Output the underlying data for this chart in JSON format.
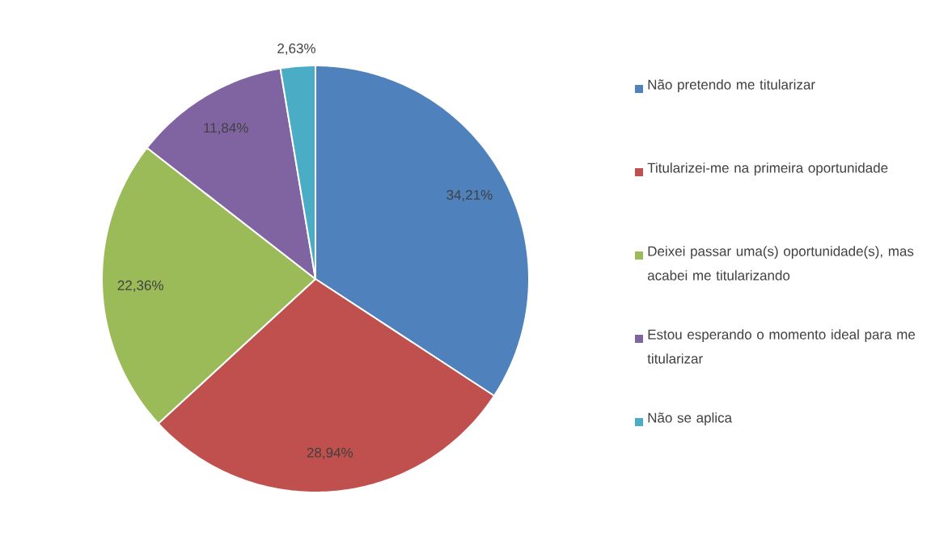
{
  "chart_data": {
    "type": "pie",
    "categories": [
      "Não pretendo me titularizar",
      "Titularizei-me na primeira oportunidade",
      "Deixei passar uma(s) oportunidade(s), mas acabei me titularizando",
      "Estou esperando o momento ideal para me titularizar",
      "Não se aplica"
    ],
    "values": [
      34.21,
      28.94,
      22.36,
      11.84,
      2.63
    ],
    "value_labels": [
      "34,21%",
      "28,94%",
      "22,36%",
      "11,84%",
      "2,63%"
    ],
    "colors": [
      "#4f81bd",
      "#c0504d",
      "#9bbb59",
      "#8064a2",
      "#4bacc6"
    ],
    "legend": "right"
  }
}
